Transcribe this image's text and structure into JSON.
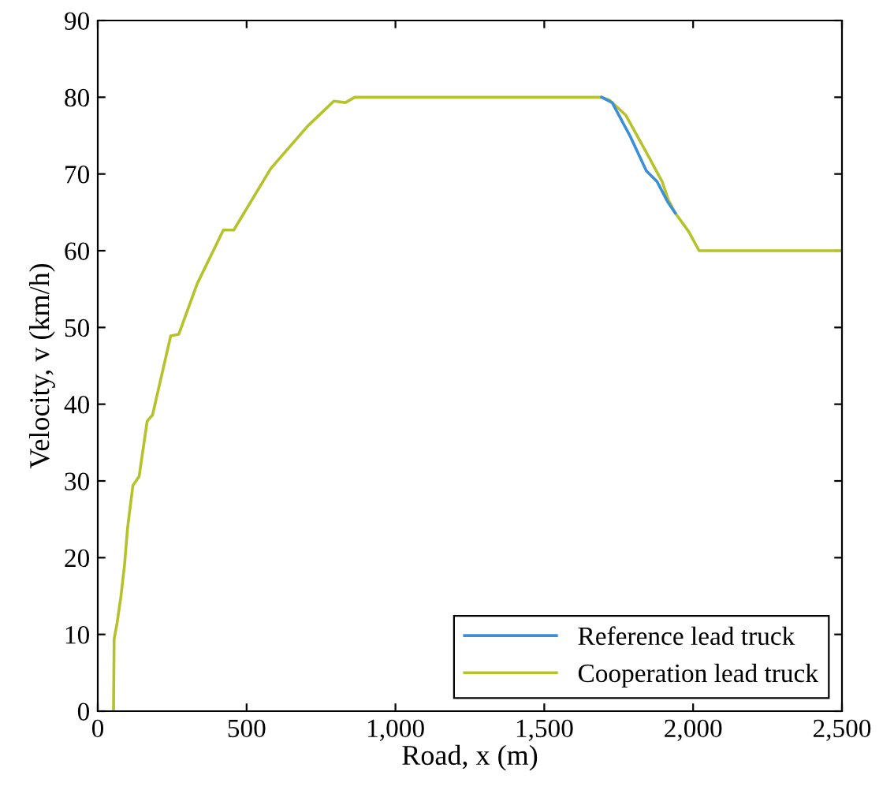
{
  "chart_data": {
    "type": "line",
    "xlabel": "Road, x (m)",
    "ylabel": "Velocity, v (km/h)",
    "xlim": [
      0,
      2500
    ],
    "ylim": [
      0,
      90
    ],
    "xticks": [
      0,
      500,
      {
        "value": 1000,
        "label": "1,000"
      },
      {
        "value": 1500,
        "label": "1,500"
      },
      {
        "value": 2000,
        "label": "2,000"
      },
      {
        "value": 2500,
        "label": "2,500"
      }
    ],
    "yticks": [
      0,
      10,
      20,
      30,
      40,
      50,
      60,
      70,
      80,
      90
    ],
    "grid": false,
    "legend": "bottom right",
    "marker": "none",
    "line_style": "solid",
    "series": [
      {
        "name": "Reference lead truck",
        "color": "#3b8fd6",
        "x": [
          1693,
          1728,
          1790,
          1843,
          1879,
          1914,
          1940
        ],
        "values": [
          80,
          79.3,
          74.8,
          70.4,
          69,
          66.4,
          64.9
        ]
      },
      {
        "name": "Cooperation lead truck",
        "color": "#b5c22a",
        "x": [
          53,
          55,
          65,
          78,
          90,
          100,
          118,
          139,
          166,
          184,
          245,
          272,
          334,
          422,
          457,
          581,
          704,
          793,
          832,
          863,
          1693,
          1720,
          1773,
          1843,
          1896,
          1917,
          1940,
          1985,
          2020,
          2500
        ],
        "values": [
          0,
          9.4,
          11.5,
          15,
          19.1,
          23.8,
          29.4,
          30.6,
          37.8,
          38.6,
          48.9,
          49.1,
          55.7,
          62.7,
          62.7,
          70.7,
          76.2,
          79.5,
          79.3,
          80,
          80,
          79.6,
          77.7,
          72.8,
          69,
          66.6,
          64.9,
          62.5,
          60,
          60
        ]
      }
    ]
  }
}
